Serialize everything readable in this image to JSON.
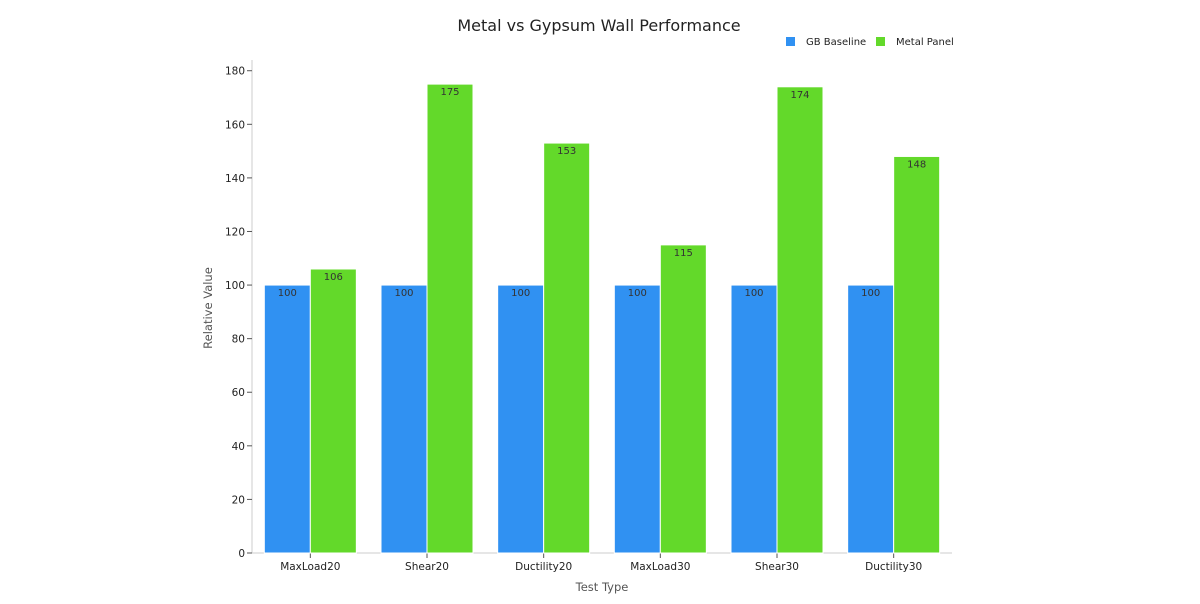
{
  "chart_data": {
    "type": "bar",
    "title": "Metal vs Gypsum Wall Performance",
    "xlabel": "Test Type",
    "ylabel": "Relative Value",
    "categories": [
      "MaxLoad20",
      "Shear20",
      "Ductility20",
      "MaxLoad30",
      "Shear30",
      "Ductility30"
    ],
    "series": [
      {
        "name": "GB Baseline",
        "color": "#3091f2",
        "values": [
          100,
          100,
          100,
          100,
          100,
          100
        ]
      },
      {
        "name": "Metal Panel",
        "color": "#63d92a",
        "values": [
          106,
          175,
          153,
          115,
          174,
          148
        ]
      }
    ],
    "ylim": [
      0,
      184
    ],
    "yticks": [
      0,
      20,
      40,
      60,
      80,
      100,
      120,
      140,
      160,
      180
    ],
    "grid": false,
    "legend": "top-right",
    "data_labels": true
  }
}
